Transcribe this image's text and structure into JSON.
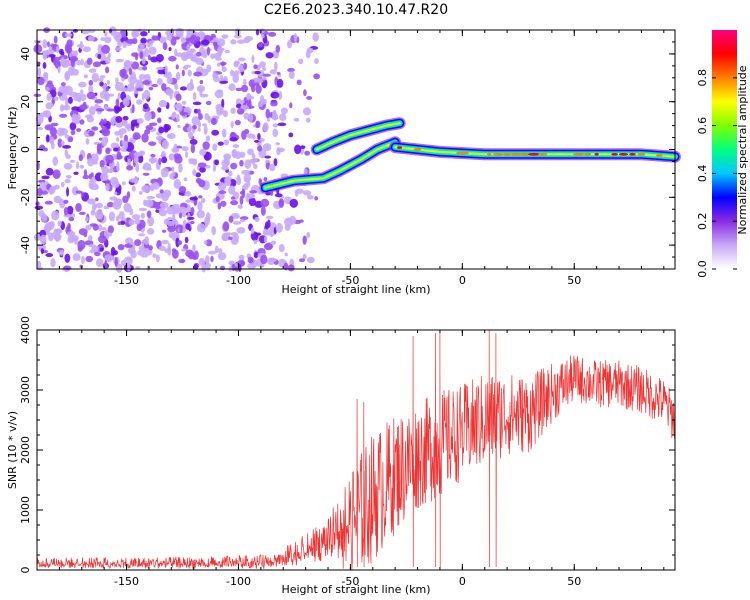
{
  "title": "C2E6.2023.340.10.47.R20",
  "chart_data": [
    {
      "type": "heatmap",
      "name": "spectrogram",
      "xlabel": "Height of straight line (km)",
      "ylabel": "Frequency (Hz)",
      "xlim": [
        -190,
        95
      ],
      "ylim": [
        -50,
        50
      ],
      "xticks": [
        -150,
        -100,
        -50,
        0,
        50
      ],
      "xtick_labels": [
        "-150",
        "-100",
        "-50",
        "0",
        "50"
      ],
      "yticks": [
        -40,
        -20,
        0,
        20,
        40
      ],
      "ytick_labels": [
        "-40",
        "-20",
        "0",
        "20",
        "40"
      ],
      "noise_region_x": [
        -190,
        -80
      ],
      "features": [
        {
          "name": "lower-rising-branch",
          "points": [
            [
              -88,
              -16
            ],
            [
              -75,
              -13
            ],
            [
              -62,
              -12
            ],
            [
              -55,
              -9
            ],
            [
              -45,
              -4
            ],
            [
              -38,
              0
            ],
            [
              -30,
              3
            ]
          ]
        },
        {
          "name": "upper-rising-branch",
          "points": [
            [
              -65,
              0
            ],
            [
              -58,
              3
            ],
            [
              -50,
              6
            ],
            [
              -42,
              8
            ],
            [
              -34,
              10
            ],
            [
              -28,
              11
            ]
          ]
        },
        {
          "name": "steady-tone",
          "points": [
            [
              -30,
              1
            ],
            [
              -20,
              0
            ],
            [
              -10,
              -1
            ],
            [
              10,
              -2
            ],
            [
              50,
              -2
            ],
            [
              80,
              -2
            ],
            [
              95,
              -3
            ]
          ]
        }
      ],
      "colorbar": {
        "label": "Normalized spectral amplitude",
        "range": [
          0.0,
          1.0
        ],
        "ticks": [
          0.0,
          0.2,
          0.4,
          0.6,
          0.8
        ],
        "tick_labels": [
          "0.0",
          "0.2",
          "0.4",
          "0.6",
          "0.8"
        ],
        "colors": [
          "#ffffff",
          "#c8a8f8",
          "#8a2be2",
          "#0000ff",
          "#00c8ff",
          "#00ff80",
          "#80ff00",
          "#ffff00",
          "#ff8000",
          "#ff0000",
          "#ff0080"
        ]
      }
    },
    {
      "type": "line",
      "name": "snr",
      "xlabel": "Height of straight line (km)",
      "ylabel": "SNR (10 * v/v)",
      "xlim": [
        -190,
        95
      ],
      "ylim": [
        0,
        4000
      ],
      "xticks": [
        -150,
        -100,
        -50,
        0,
        50
      ],
      "xtick_labels": [
        "-150",
        "-100",
        "-50",
        "0",
        "50"
      ],
      "yticks": [
        0,
        1000,
        2000,
        3000,
        4000
      ],
      "ytick_labels": [
        "0",
        "1000",
        "2000",
        "3000",
        "4000"
      ],
      "line_color": "#ee3333",
      "trend": [
        {
          "x": -190,
          "base": 120,
          "spread": 90
        },
        {
          "x": -120,
          "base": 120,
          "spread": 100
        },
        {
          "x": -85,
          "base": 140,
          "spread": 120
        },
        {
          "x": -70,
          "base": 350,
          "spread": 250
        },
        {
          "x": -60,
          "base": 500,
          "spread": 350
        },
        {
          "x": -50,
          "base": 800,
          "spread": 900
        },
        {
          "x": -40,
          "base": 1200,
          "spread": 1100
        },
        {
          "x": -30,
          "base": 1600,
          "spread": 1000
        },
        {
          "x": -20,
          "base": 1900,
          "spread": 900
        },
        {
          "x": -10,
          "base": 2100,
          "spread": 900
        },
        {
          "x": 0,
          "base": 2300,
          "spread": 800
        },
        {
          "x": 10,
          "base": 2500,
          "spread": 800
        },
        {
          "x": 20,
          "base": 2600,
          "spread": 700
        },
        {
          "x": 30,
          "base": 2600,
          "spread": 650
        },
        {
          "x": 40,
          "base": 2950,
          "spread": 500
        },
        {
          "x": 50,
          "base": 3200,
          "spread": 400
        },
        {
          "x": 60,
          "base": 3100,
          "spread": 400
        },
        {
          "x": 70,
          "base": 3100,
          "spread": 400
        },
        {
          "x": 80,
          "base": 3000,
          "spread": 400
        },
        {
          "x": 90,
          "base": 2800,
          "spread": 400
        },
        {
          "x": 95,
          "base": 2500,
          "spread": 400
        }
      ],
      "spikes": [
        [
          -10,
          4000
        ],
        [
          -12,
          3950
        ],
        [
          12,
          4000
        ],
        [
          15,
          3950
        ],
        [
          -22,
          3900
        ],
        [
          -44,
          2800
        ],
        [
          -47,
          2850
        ]
      ]
    }
  ]
}
